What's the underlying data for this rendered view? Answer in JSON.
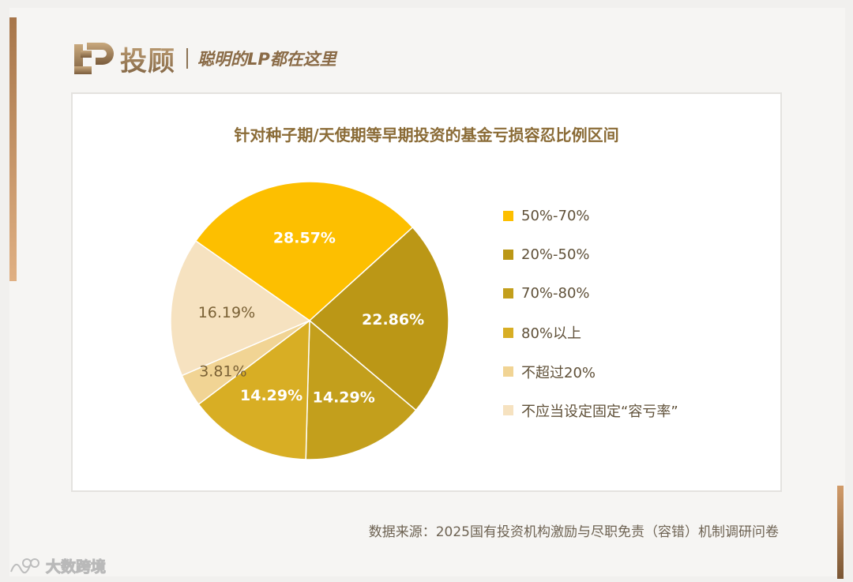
{
  "header": {
    "brand_name": "投顾",
    "tagline": "聪明的LP都在这里"
  },
  "chart_data": {
    "type": "pie",
    "title": "针对种子期/天使期等早期投资的基金亏损容忍比例区间",
    "categories": [
      "50%-70%",
      "20%-50%",
      "70%-80%",
      "80%以上",
      "不超过20%",
      "不应当设定固定“容亏率”"
    ],
    "values": [
      28.57,
      22.86,
      14.29,
      14.29,
      3.81,
      16.19
    ],
    "data_labels": [
      "28.57%",
      "22.86%",
      "14.29%",
      "14.29%",
      "3.81%",
      "16.19%"
    ],
    "slice_colors": [
      "#fdbf00",
      "#bb9716",
      "#c39f1c",
      "#d8ae24",
      "#f1d494",
      "#f6e2c0"
    ],
    "label_colors": [
      "#ffffff",
      "#ffffff",
      "#ffffff",
      "#ffffff",
      "#7a6135",
      "#7a6135"
    ],
    "legend_position": "right"
  },
  "footer": {
    "source": "数据来源：2025国有投资机构激励与尽职免责（容错）机制调研问卷"
  },
  "watermark": {
    "text": "大数跨境"
  },
  "colors": {
    "brand": "#9a7a55",
    "accent_left": "#c48f61",
    "accent_right": "#a4774d"
  }
}
